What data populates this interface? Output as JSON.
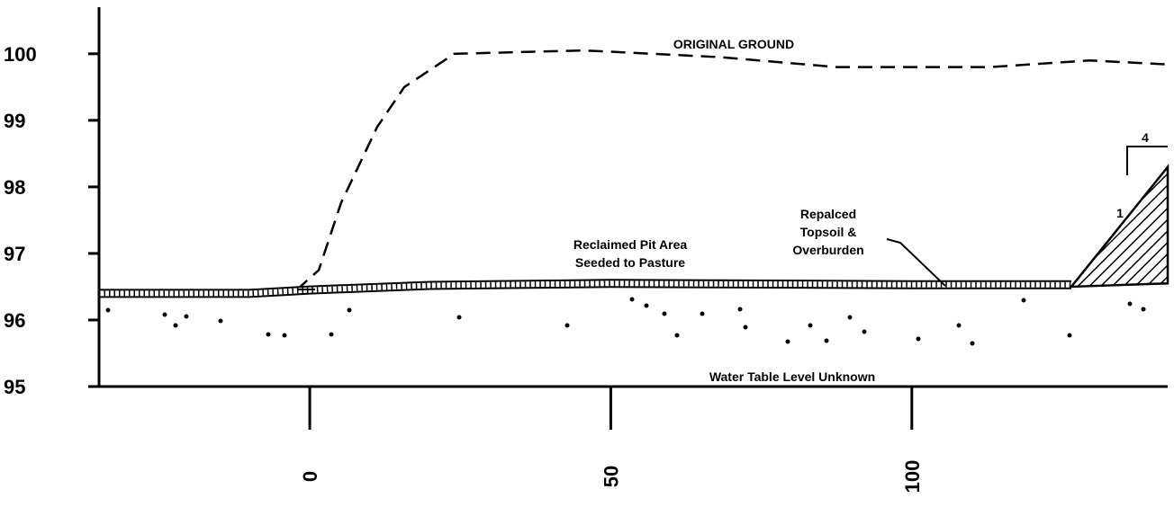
{
  "chart_data": {
    "type": "line",
    "xlim": [
      -35,
      142.5
    ],
    "ylim": [
      95,
      100.7
    ],
    "xticks": [
      0,
      50,
      100
    ],
    "yticks": [
      95,
      96,
      97,
      98,
      99,
      100
    ],
    "series": [
      {
        "name": "ORIGINAL GROUND",
        "color": "#000000",
        "style": "dashed",
        "x": [
          -2.2,
          1.5,
          5.2,
          11.2,
          15.7,
          24,
          45.7,
          68,
          87.6,
          113,
          129.5,
          142.5
        ],
        "values": [
          96.45,
          96.75,
          97.76,
          98.9,
          99.5,
          100,
          100.05,
          99.95,
          99.8,
          99.8,
          99.9,
          99.84
        ]
      },
      {
        "color": "#000000",
        "style": "topsoil",
        "x": [
          -35,
          -10,
          0,
          20,
          50,
          100,
          126.5
        ],
        "values": [
          96.4,
          96.4,
          96.45,
          96.52,
          96.55,
          96.53,
          96.53
        ]
      },
      {
        "color": "#000000",
        "style": "hatched",
        "x": [
          126.5,
          142.5,
          142.5
        ],
        "values": [
          96.5,
          98.3,
          96.55
        ]
      }
    ],
    "annotations": [
      "Reclaimed Pit Area",
      "Seeded to Pasture",
      "Repalced",
      "Topsoil &",
      "Overburden",
      "Water Table Level Unknown",
      "1",
      "4"
    ]
  }
}
